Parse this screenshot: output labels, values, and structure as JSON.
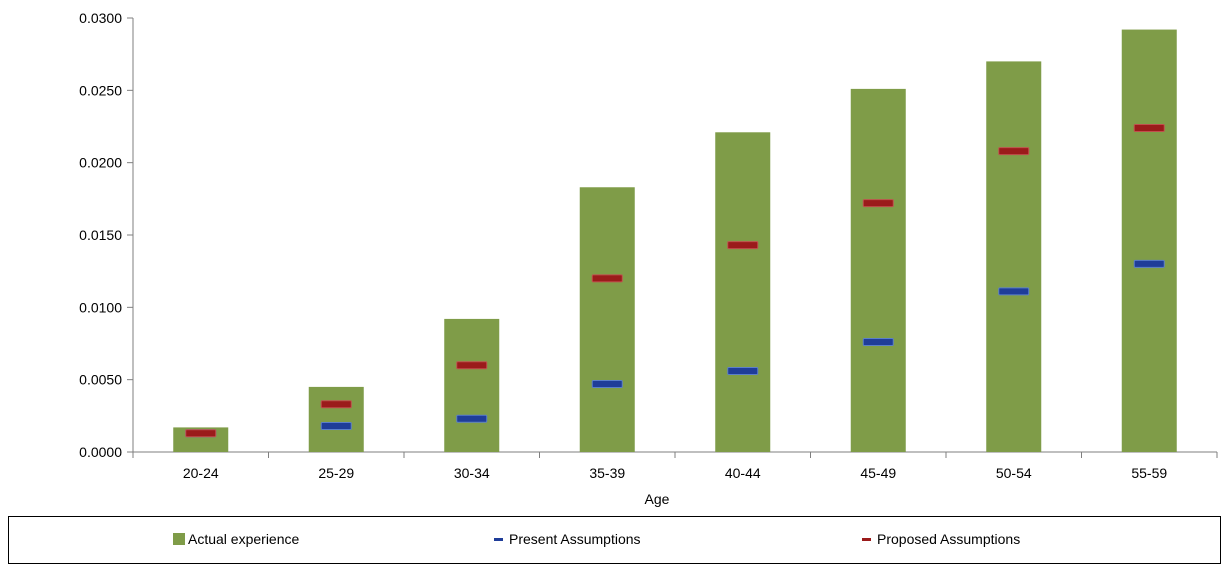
{
  "chart_data": {
    "type": "bar",
    "title": "",
    "xlabel": "Age",
    "ylabel": "",
    "categories": [
      "20-24",
      "25-29",
      "30-34",
      "35-39",
      "40-44",
      "45-49",
      "50-54",
      "55-59"
    ],
    "ylim": [
      0,
      0.03
    ],
    "yticks": [
      "0.0000",
      "0.0050",
      "0.0100",
      "0.0150",
      "0.0200",
      "0.0250",
      "0.0300"
    ],
    "grid": false,
    "legend_position": "bottom",
    "series": [
      {
        "name": "Actual experience",
        "kind": "bar",
        "color": "#7F9C48",
        "values": [
          0.0017,
          0.0045,
          0.0092,
          0.0183,
          0.0221,
          0.0251,
          0.027,
          0.0292
        ]
      },
      {
        "name": "Present Assumptions",
        "kind": "marker",
        "color": "#1F3D99",
        "values": [
          0.0013,
          0.0018,
          0.0023,
          0.0047,
          0.0056,
          0.0076,
          0.0111,
          0.013
        ]
      },
      {
        "name": "Proposed Assumptions",
        "kind": "marker",
        "color": "#9B1B1B",
        "values": [
          0.0013,
          0.0033,
          0.006,
          0.012,
          0.0143,
          0.0172,
          0.0208,
          0.0224
        ]
      }
    ]
  }
}
